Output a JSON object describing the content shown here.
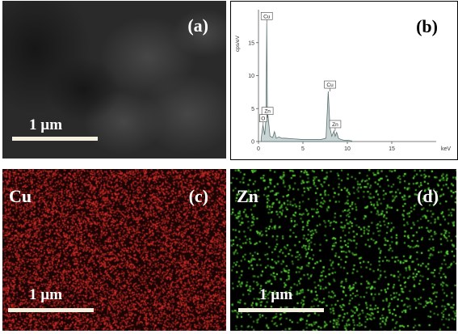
{
  "panels": {
    "a": {
      "label": "(a)",
      "scale": "1 µm"
    },
    "b": {
      "label": "(b)"
    },
    "c": {
      "label": "(c)",
      "element": "Cu",
      "scale": "1 µm",
      "dot_color": "#e0302a"
    },
    "d": {
      "label": "(d)",
      "element": "Zn",
      "scale": "1 µm",
      "dot_color": "#5ee03a"
    }
  },
  "chart_data": {
    "type": "line",
    "title": "",
    "xlabel": "keV",
    "ylabel": "cps/eV",
    "xlim": [
      0,
      20
    ],
    "ylim": [
      0,
      20
    ],
    "x_ticks": [
      0,
      5,
      10,
      15
    ],
    "y_ticks": [
      0,
      5,
      10,
      15
    ],
    "x_tick_labels": [
      "0",
      "5",
      "10",
      "15"
    ],
    "y_tick_labels": [
      "0",
      "5",
      "10",
      "15"
    ],
    "series": [
      {
        "x": [
          0.3,
          0.5,
          0.7,
          0.85,
          0.93,
          1.0,
          1.1,
          1.3,
          1.6,
          1.8,
          2.0,
          2.3,
          2.6,
          3.0,
          4.0,
          5.0,
          6.0,
          7.0,
          7.6,
          7.85,
          8.05,
          8.25,
          8.5,
          8.63,
          8.8,
          9.0,
          9.3,
          9.6,
          10.0,
          10.5
        ],
        "y": [
          0.4,
          2.5,
          1.0,
          3.6,
          18.0,
          4.6,
          3.5,
          0.8,
          0.6,
          1.5,
          0.5,
          0.7,
          0.5,
          0.5,
          0.4,
          0.3,
          0.3,
          0.3,
          0.5,
          7.6,
          2.0,
          0.8,
          1.6,
          0.8,
          1.4,
          0.5,
          0.3,
          0.2,
          0.2,
          0.1
        ]
      }
    ],
    "annotations": [
      {
        "text": "Cu",
        "x": 0.93,
        "y": 18.0
      },
      {
        "text": "O",
        "x": 0.53,
        "y": 2.5
      },
      {
        "text": "Zn",
        "x": 1.01,
        "y": 3.6
      },
      {
        "text": "Cu",
        "x": 8.05,
        "y": 7.6
      },
      {
        "text": "Zn",
        "x": 8.63,
        "y": 1.6
      }
    ],
    "fill": true,
    "grid": false
  }
}
